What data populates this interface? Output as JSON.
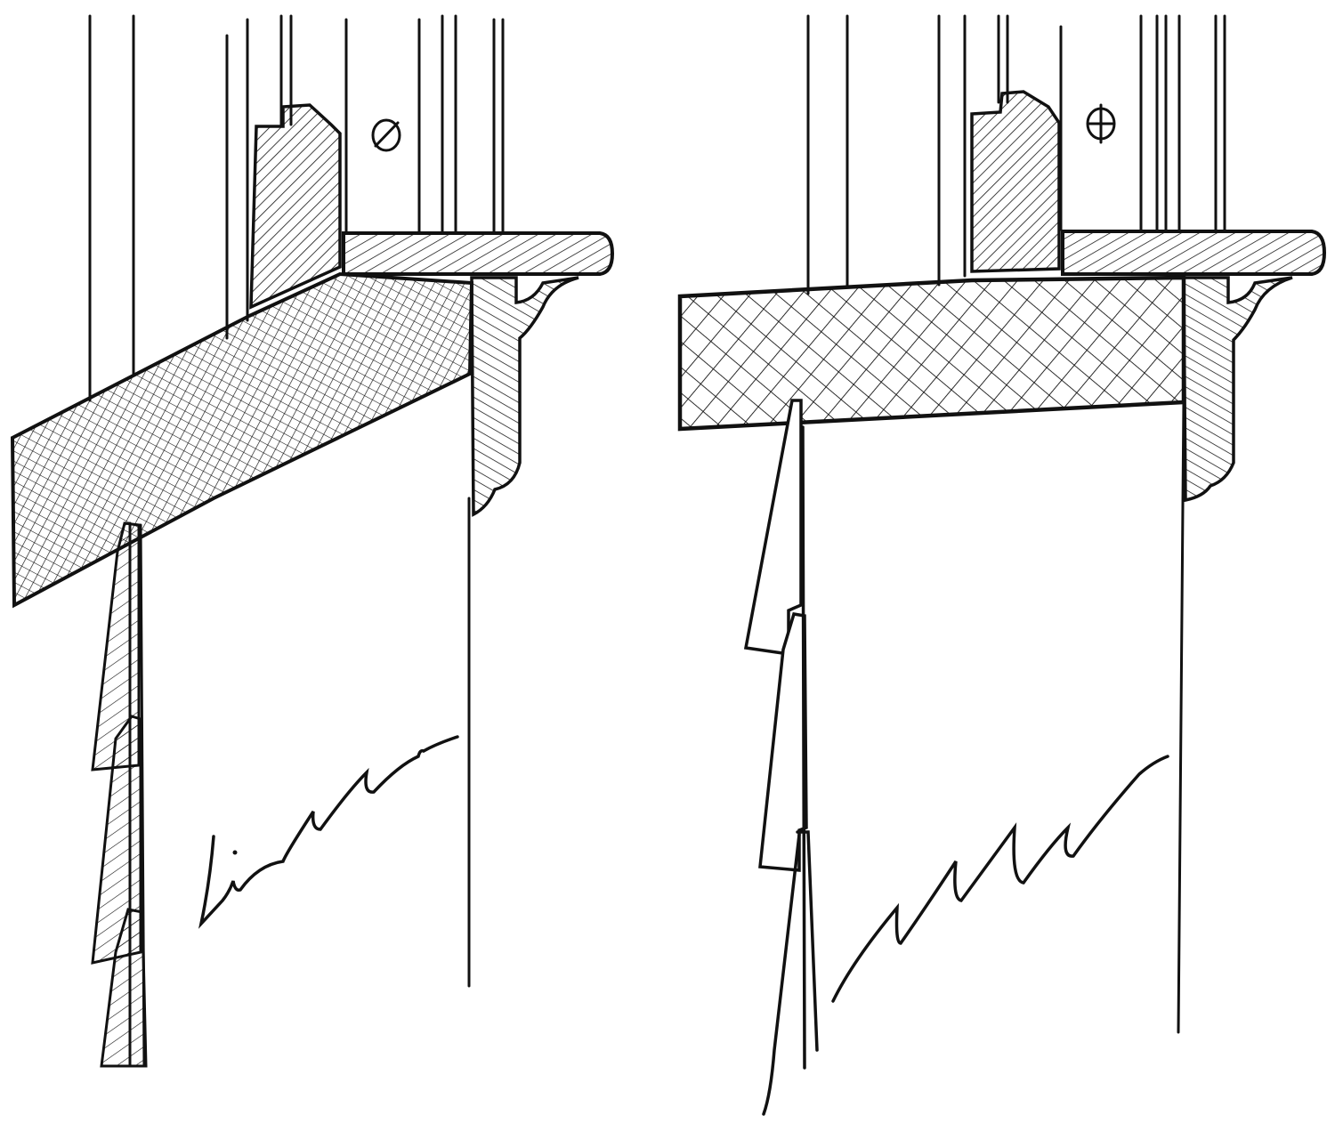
{
  "figure": {
    "panels": [
      {
        "id": "left",
        "depiction": "sloped-sill-section",
        "hatching": "dense-crosshatch"
      },
      {
        "id": "right",
        "depiction": "flat-sill-section",
        "hatching": "diamond-crosshatch"
      }
    ],
    "colors": {
      "ink": "#111111",
      "paper": "#ffffff"
    }
  }
}
